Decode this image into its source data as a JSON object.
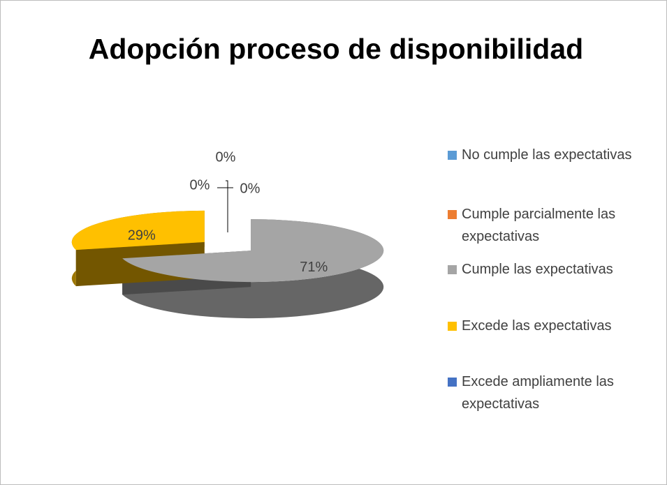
{
  "chart_data": {
    "type": "pie3d",
    "title": "Adopción proceso de disponibilidad",
    "categories": [
      "No cumple las expectativas",
      "Cumple parcialmente las expectativas",
      "Cumple las expectativas",
      "Excede las expectativas",
      "Excede ampliamente las expectativas"
    ],
    "values": [
      0,
      0,
      71,
      29,
      0
    ],
    "value_labels": [
      "0%",
      "0%",
      "71%",
      "29%",
      "0%"
    ],
    "colors": [
      "#5b9bd5",
      "#ed7d31",
      "#a5a5a5",
      "#ffc000",
      "#4472c4"
    ],
    "legend": "right"
  }
}
